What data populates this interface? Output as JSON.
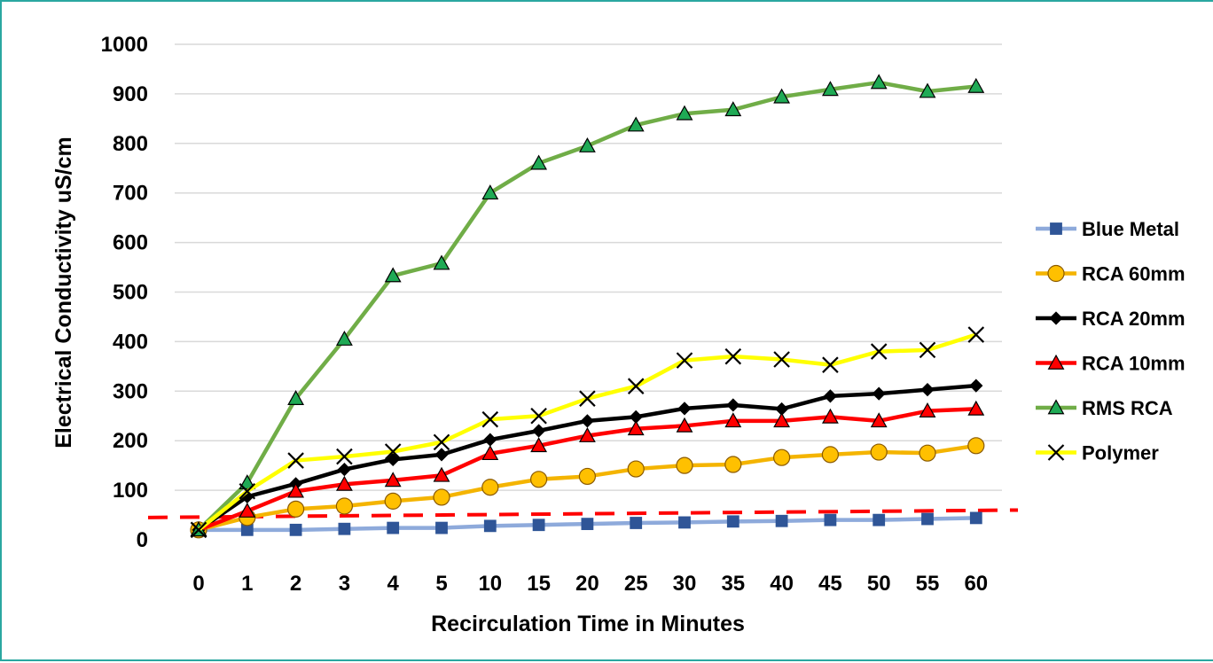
{
  "chart_data": {
    "type": "line",
    "xlabel": "Recirculation Time in Minutes",
    "ylabel": "Electrical Conductivity uS/cm",
    "ylim": [
      0,
      1000
    ],
    "yticks": [
      0,
      100,
      200,
      300,
      400,
      500,
      600,
      700,
      800,
      900,
      1000
    ],
    "categories": [
      "0",
      "1",
      "2",
      "3",
      "4",
      "5",
      "10",
      "15",
      "20",
      "25",
      "30",
      "35",
      "40",
      "45",
      "50",
      "55",
      "60"
    ],
    "grid": "horizontal",
    "legend_position": "right",
    "series": [
      {
        "name": "Blue Metal",
        "line_color": "#8eaadb",
        "marker": "square",
        "marker_fill": "#2f5597",
        "values": [
          20,
          20,
          20,
          22,
          24,
          24,
          28,
          30,
          32,
          34,
          35,
          37,
          38,
          40,
          40,
          42,
          44
        ]
      },
      {
        "name": "RCA 60mm",
        "line_color": "#f4b400",
        "marker": "circle",
        "marker_fill": "#ffc000",
        "values": [
          20,
          45,
          62,
          68,
          78,
          86,
          106,
          122,
          128,
          143,
          150,
          152,
          166,
          172,
          177,
          175,
          190
        ]
      },
      {
        "name": "RCA 20mm",
        "line_color": "#000000",
        "marker": "diamond",
        "marker_fill": "#000000",
        "values": [
          20,
          87,
          113,
          142,
          162,
          172,
          202,
          220,
          240,
          248,
          265,
          272,
          264,
          290,
          295,
          303,
          311
        ]
      },
      {
        "name": "RCA 10mm",
        "line_color": "#ff0000",
        "marker": "triangle",
        "marker_fill": "#ff0000",
        "values": [
          20,
          58,
          98,
          112,
          120,
          130,
          174,
          190,
          210,
          224,
          230,
          240,
          240,
          248,
          240,
          260,
          264
        ]
      },
      {
        "name": "RMS RCA",
        "line_color": "#70ad47",
        "marker": "triangle",
        "marker_fill": "#1faa55",
        "values": [
          20,
          115,
          285,
          405,
          533,
          558,
          700,
          760,
          795,
          837,
          860,
          868,
          894,
          909,
          923,
          905,
          915
        ]
      },
      {
        "name": "Polymer",
        "line_color": "#ffff00",
        "marker": "x",
        "marker_fill": "#000000",
        "values": [
          20,
          98,
          160,
          168,
          178,
          197,
          243,
          250,
          285,
          310,
          362,
          370,
          364,
          353,
          380,
          383,
          414
        ]
      }
    ],
    "reference_line": {
      "style": "dashed",
      "color": "#ff0000",
      "start_value": 45,
      "end_value": 60
    }
  }
}
